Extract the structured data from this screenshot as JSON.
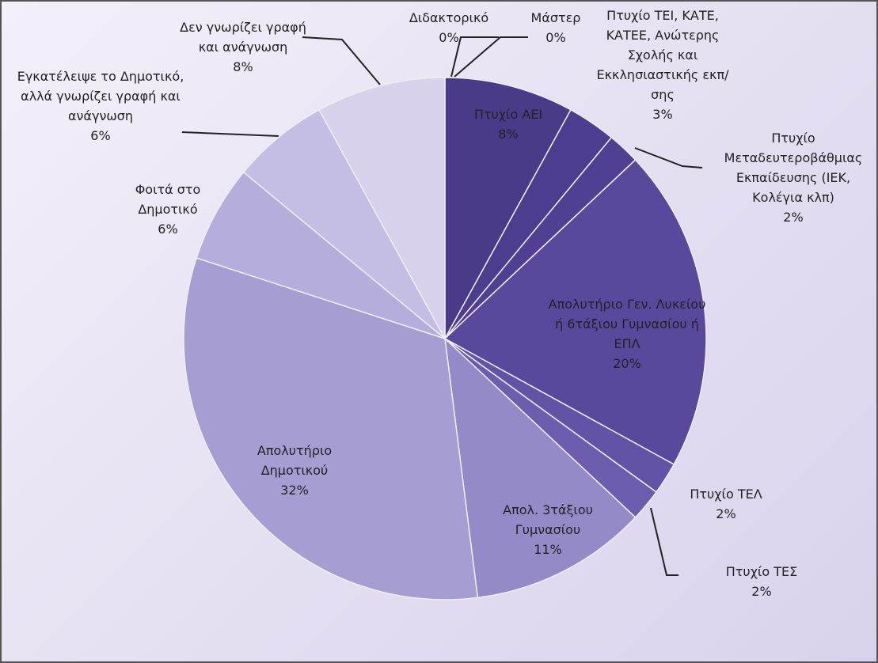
{
  "chart_data": {
    "type": "pie",
    "categories": [
      "Διδακτορικό",
      "Μάστερ",
      "Πτυχίο ΑΕΙ",
      "Πτυχίο ΤΕΙ, ΚΑΤΕ, ΚΑΤΕΕ, Ανώτερης Σχολής και Εκκλησιαστικής εκπ/σης",
      "Πτυχίο Μεταδευτεροβάθμιας Εκπαίδευσης (ΙΕΚ, Κολέγια κλπ)",
      "Απολυτήριο Γεν. Λυκείου ή 6τάξιου Γυμνασίου ή ΕΠΛ",
      "Πτυχίο ΤΕΛ",
      "Πτυχίο ΤΕΣ",
      "Απολ. 3τάξιου Γυμνασίου",
      "Απολυτήριο Δημοτικού",
      "Φοιτά στο Δημοτικό",
      "Εγκατέλειψε το Δημοτικό, αλλά γνωρίζει γραφή και ανάγνωση",
      "Δεν γνωρίζει γραφή και ανάγνωση"
    ],
    "values": [
      0,
      0,
      8,
      3,
      2,
      20,
      2,
      2,
      11,
      32,
      6,
      6,
      8
    ],
    "value_labels": [
      "0%",
      "0%",
      "8%",
      "3%",
      "2%",
      "20%",
      "2%",
      "2%",
      "11%",
      "32%",
      "6%",
      "6%",
      "8%"
    ],
    "colors": [
      "#33245f",
      "#3a2a6b",
      "#4a3a88",
      "#4d3d8e",
      "#513f93",
      "#5a489c",
      "#6452a6",
      "#6e5dae",
      "#958ac8",
      "#a69dd3",
      "#b5addc",
      "#c5bee4",
      "#d7d1ec"
    ]
  }
}
